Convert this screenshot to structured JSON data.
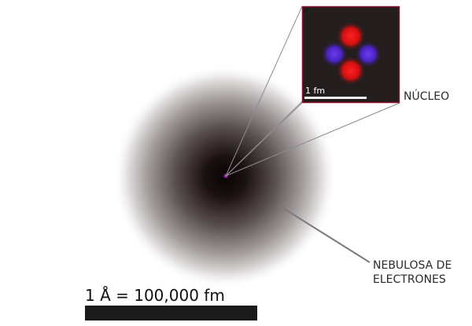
{
  "labels": {
    "nucleus": "NÚCLEO",
    "electron_cloud_line1": "NEBULOSA DE",
    "electron_cloud_line2": "ELECTRONES",
    "scale": "1 Å = 100,000 fm",
    "inset_scale": "1 fm"
  },
  "colors": {
    "cloud_core": "#0c0304",
    "cloud_mid": "#6f6565",
    "cloud_edge": "#ffffff",
    "nucleus_dot": "#c21fd1",
    "inset_background": "#231d1e",
    "inset_border": "#8a1530",
    "proton": "#ee1111",
    "neutron": "#5a28dd",
    "pointer_line": "#8c8c8c",
    "scale_bar": "#1a1a1a"
  },
  "nucleus_particles": [
    {
      "type": "proton",
      "color_key": "proton"
    },
    {
      "type": "neutron",
      "color_key": "neutron"
    },
    {
      "type": "neutron",
      "color_key": "neutron"
    },
    {
      "type": "proton",
      "color_key": "proton"
    }
  ]
}
